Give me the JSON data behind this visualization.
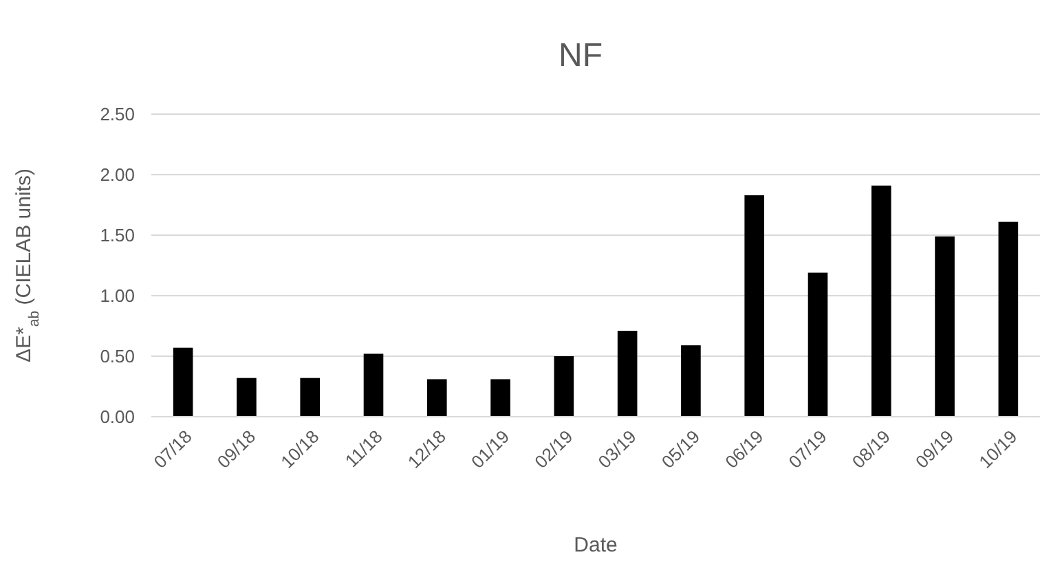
{
  "chart_data": {
    "type": "bar",
    "title": "NF",
    "xlabel": "Date",
    "ylabel": "ΔE*$_{ab}$ (CIELAB units)",
    "categories": [
      "07/18",
      "09/18",
      "10/18",
      "11/18",
      "12/18",
      "01/19",
      "02/19",
      "03/19",
      "05/19",
      "06/19",
      "07/19",
      "08/19",
      "09/19",
      "10/19"
    ],
    "values": [
      0.57,
      0.32,
      0.32,
      0.52,
      0.31,
      0.31,
      0.5,
      0.71,
      0.59,
      1.83,
      1.19,
      1.91,
      1.49,
      1.61
    ],
    "color": "#000000",
    "ylim": [
      0,
      2.5
    ],
    "yticks": [
      {
        "value": 0,
        "label": "0.00"
      },
      {
        "value": 0.5,
        "label": "0.50"
      },
      {
        "value": 1,
        "label": "1.00"
      },
      {
        "value": 1.5,
        "label": "1.50"
      },
      {
        "value": 2,
        "label": "2.00"
      },
      {
        "value": 2.5,
        "label": "2.50"
      }
    ],
    "grid": "y"
  }
}
